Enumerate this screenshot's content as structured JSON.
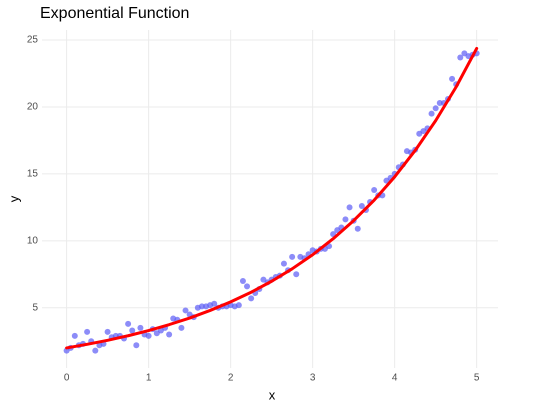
{
  "chart_data": {
    "type": "scatter",
    "title": "Exponential Function",
    "x_label": "x",
    "y_label": "y",
    "xlim": [
      -0.3,
      5.26
    ],
    "xticks": [
      0,
      1,
      2,
      3,
      4,
      5
    ],
    "ylim": [
      0.5,
      25.75
    ],
    "yticks": [
      5,
      10,
      15,
      20,
      25
    ],
    "grid": true,
    "series": [
      {
        "type": "scatter",
        "color": "#5b5bf5",
        "x": [
          0,
          0.05,
          0.1,
          0.15,
          0.2,
          0.25,
          0.3,
          0.35,
          0.4,
          0.45,
          0.5,
          0.55,
          0.6,
          0.65,
          0.7,
          0.75,
          0.8,
          0.85,
          0.9,
          0.95,
          1,
          1.05,
          1.1,
          1.15,
          1.2,
          1.25,
          1.3,
          1.35,
          1.4,
          1.45,
          1.5,
          1.55,
          1.6,
          1.65,
          1.7,
          1.75,
          1.8,
          1.85,
          1.9,
          1.95,
          2,
          2.05,
          2.1,
          2.15,
          2.2,
          2.25,
          2.3,
          2.35,
          2.4,
          2.45,
          2.5,
          2.55,
          2.6,
          2.65,
          2.7,
          2.75,
          2.8,
          2.85,
          2.9,
          2.95,
          3,
          3.05,
          3.1,
          3.15,
          3.2,
          3.25,
          3.3,
          3.35,
          3.4,
          3.45,
          3.5,
          3.55,
          3.6,
          3.65,
          3.7,
          3.75,
          3.8,
          3.85,
          3.9,
          3.95,
          4,
          4.05,
          4.1,
          4.15,
          4.2,
          4.25,
          4.3,
          4.35,
          4.4,
          4.45,
          4.5,
          4.55,
          4.6,
          4.65,
          4.7,
          4.75,
          4.8,
          4.85,
          4.9,
          4.95,
          5
        ],
        "values": [
          1.8,
          2.0,
          2.9,
          2.2,
          2.3,
          3.2,
          2.5,
          1.8,
          2.2,
          2.3,
          3.2,
          2.8,
          2.9,
          2.9,
          2.7,
          3.8,
          3.3,
          2.2,
          3.5,
          3.0,
          2.9,
          3.4,
          3.1,
          3.3,
          3.5,
          3.0,
          4.2,
          4.1,
          3.5,
          4.8,
          4.5,
          4.3,
          5.0,
          5.1,
          5.1,
          5.2,
          5.3,
          5.0,
          5.1,
          5.1,
          5.2,
          5.1,
          5.2,
          7.0,
          6.6,
          5.7,
          6.1,
          6.4,
          7.1,
          6.9,
          7.1,
          7.3,
          7.4,
          8.3,
          7.8,
          8.8,
          7.5,
          8.8,
          8.7,
          9.0,
          9.3,
          9.2,
          9.4,
          9.4,
          9.6,
          10.5,
          10.8,
          11.0,
          11.6,
          12.5,
          11.5,
          10.9,
          12.6,
          12.3,
          12.9,
          13.8,
          13.4,
          13.4,
          14.5,
          14.7,
          15.0,
          15.5,
          15.7,
          16.7,
          16.6,
          16.8,
          18.0,
          18.2,
          18.4,
          19.5,
          19.9,
          20.3,
          20.3,
          20.6,
          22.1,
          21.7,
          23.7,
          24.0,
          23.8,
          23.9,
          24.0
        ]
      },
      {
        "type": "line",
        "color": "#ff0000",
        "x": [
          0,
          0.25,
          0.5,
          0.75,
          1,
          1.25,
          1.5,
          1.75,
          2,
          2.25,
          2.5,
          2.75,
          3,
          3.25,
          3.5,
          3.75,
          4,
          4.25,
          4.5,
          4.75,
          5
        ],
        "values": [
          2.0,
          2.27,
          2.57,
          2.91,
          3.3,
          3.74,
          4.23,
          4.8,
          5.44,
          6.16,
          6.98,
          7.91,
          8.96,
          10.16,
          11.51,
          13.04,
          14.78,
          16.75,
          18.98,
          21.5,
          24.37
        ]
      }
    ]
  }
}
